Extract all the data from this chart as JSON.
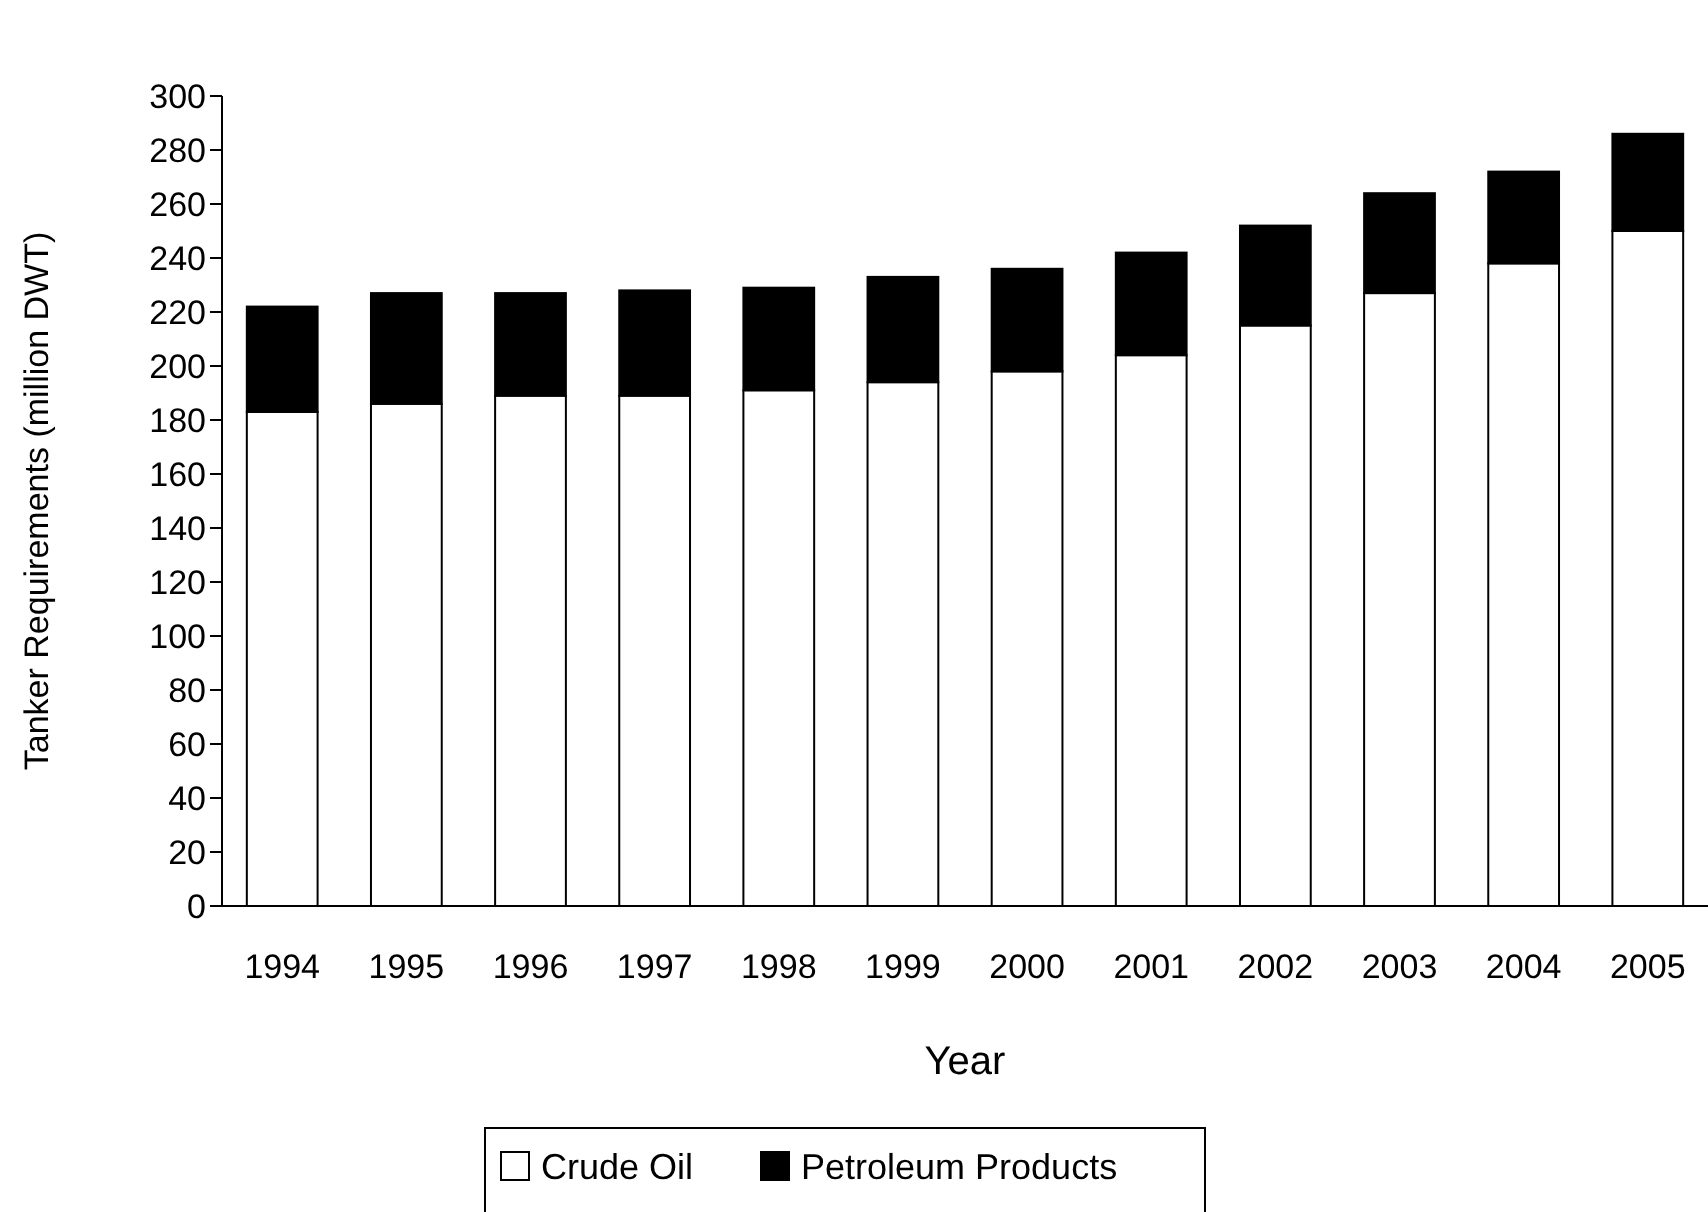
{
  "chart_data": {
    "type": "bar",
    "stacked": true,
    "xlabel": "Year",
    "ylabel": "Tanker Requirements (million DWT)",
    "categories": [
      "1994",
      "1995",
      "1996",
      "1997",
      "1998",
      "1999",
      "2000",
      "2001",
      "2002",
      "2003",
      "2004",
      "2005"
    ],
    "series": [
      {
        "name": "Crude Oil",
        "color": "#ffffff",
        "values": [
          183,
          186,
          189,
          189,
          191,
          194,
          198,
          204,
          215,
          227,
          238,
          250
        ]
      },
      {
        "name": "Petroleum Products",
        "color": "#000000",
        "values": [
          39,
          41,
          38,
          39,
          38,
          39,
          38,
          38,
          37,
          37,
          34,
          36
        ]
      }
    ],
    "ylim": [
      0,
      300
    ],
    "yticks": [
      0,
      20,
      40,
      60,
      80,
      100,
      120,
      140,
      160,
      180,
      200,
      220,
      240,
      260,
      280,
      300
    ],
    "grid": false,
    "legend": "bottom"
  }
}
